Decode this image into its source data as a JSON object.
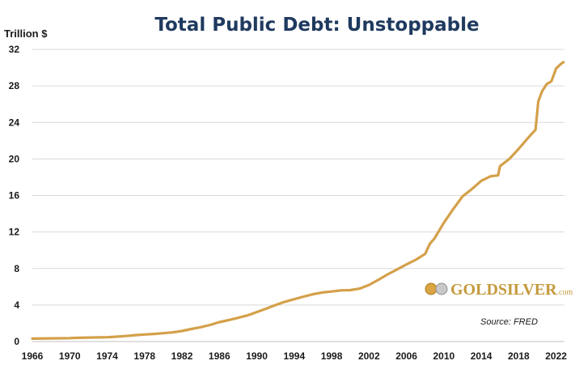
{
  "chart_data": {
    "type": "line",
    "title": "Total Public Debt: Unstoppable",
    "ylabel": "Trillion $",
    "xlabel": "",
    "xlim": [
      1966,
      2022.9
    ],
    "ylim": [
      0,
      32
    ],
    "yticks": [
      0,
      4,
      8,
      12,
      16,
      20,
      24,
      28,
      32
    ],
    "xticks": [
      1966,
      1970,
      1974,
      1978,
      1982,
      1986,
      1990,
      1994,
      1998,
      2002,
      2006,
      2010,
      2014,
      2018,
      2022
    ],
    "grid": "horizontal",
    "series": [
      {
        "name": "Total Public Debt",
        "color": "#d4a04a",
        "x": [
          1966,
          1968,
          1970,
          1970.5,
          1972,
          1974,
          1974.5,
          1976,
          1977,
          1978,
          1979,
          1980,
          1981,
          1982,
          1983,
          1984,
          1985,
          1986,
          1987,
          1988,
          1989,
          1990,
          1991,
          1992,
          1993,
          1994,
          1995,
          1996,
          1997,
          1998,
          1999,
          2000,
          2001,
          2002,
          2003,
          2004,
          2005,
          2006,
          2007,
          2008,
          2008.5,
          2009,
          2010,
          2011,
          2012,
          2013,
          2014,
          2015,
          2015.8,
          2016,
          2017,
          2018,
          2019,
          2019.8,
          2020.1,
          2020.5,
          2021,
          2021.5,
          2022,
          2022.5,
          2022.8
        ],
        "values": [
          0.32,
          0.35,
          0.37,
          0.4,
          0.43,
          0.47,
          0.5,
          0.6,
          0.7,
          0.77,
          0.83,
          0.91,
          1.0,
          1.15,
          1.37,
          1.57,
          1.82,
          2.13,
          2.35,
          2.6,
          2.86,
          3.23,
          3.6,
          4.0,
          4.35,
          4.64,
          4.92,
          5.18,
          5.37,
          5.48,
          5.6,
          5.63,
          5.8,
          6.2,
          6.76,
          7.36,
          7.9,
          8.45,
          8.95,
          9.6,
          10.7,
          11.3,
          13.0,
          14.5,
          15.9,
          16.7,
          17.6,
          18.1,
          18.2,
          19.2,
          20.0,
          21.1,
          22.3,
          23.2,
          26.3,
          27.4,
          28.2,
          28.5,
          29.9,
          30.4,
          30.6
        ]
      }
    ]
  },
  "logo": {
    "text": "GOLDSILVER",
    "suffix": ".com"
  },
  "source": "Source: FRED"
}
